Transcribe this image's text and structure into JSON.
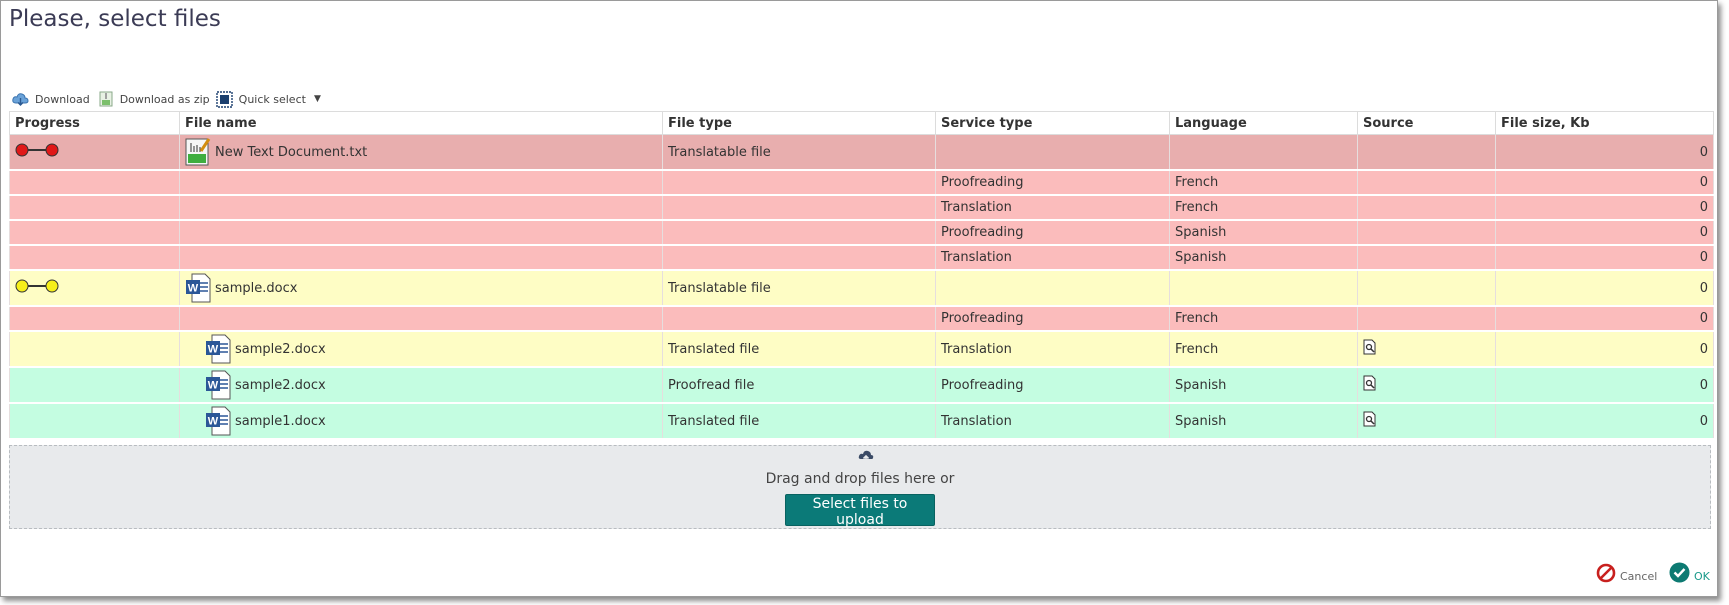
{
  "title": "Please, select files",
  "toolbar": {
    "download": "Download",
    "download_zip": "Download as zip",
    "quick_select": "Quick select"
  },
  "columns": [
    "Progress",
    "File name",
    "File type",
    "Service type",
    "Language",
    "Source",
    "File size, Kb"
  ],
  "rows": [
    {
      "file_name": "New Text Document.txt",
      "file_type": "Translatable file",
      "service": "",
      "language": "",
      "size": "0"
    },
    {
      "file_name": "",
      "file_type": "",
      "service": "Proofreading",
      "language": "French",
      "size": "0"
    },
    {
      "file_name": "",
      "file_type": "",
      "service": "Translation",
      "language": "French",
      "size": "0"
    },
    {
      "file_name": "",
      "file_type": "",
      "service": "Proofreading",
      "language": "Spanish",
      "size": "0"
    },
    {
      "file_name": "",
      "file_type": "",
      "service": "Translation",
      "language": "Spanish",
      "size": "0"
    },
    {
      "file_name": "sample.docx",
      "file_type": "Translatable file",
      "service": "",
      "language": "",
      "size": "0"
    },
    {
      "file_name": "",
      "file_type": "",
      "service": "Proofreading",
      "language": "French",
      "size": "0"
    },
    {
      "file_name": "sample2.docx",
      "file_type": "Translated file",
      "service": "Translation",
      "language": "French",
      "size": "0"
    },
    {
      "file_name": "sample2.docx",
      "file_type": "Proofread file",
      "service": "Proofreading",
      "language": "Spanish",
      "size": "0"
    },
    {
      "file_name": "sample1.docx",
      "file_type": "Translated file",
      "service": "Translation",
      "language": "Spanish",
      "size": "0"
    }
  ],
  "dropzone": {
    "text": "Drag and drop files here or",
    "button": "Select files to upload"
  },
  "footer": {
    "cancel": "Cancel",
    "ok": "OK"
  },
  "colors": {
    "red_main": "#e8aeae",
    "red": "#fbbcbc",
    "yellow": "#fefdc5",
    "green": "#c4fde1",
    "accent": "#0b7a78"
  }
}
